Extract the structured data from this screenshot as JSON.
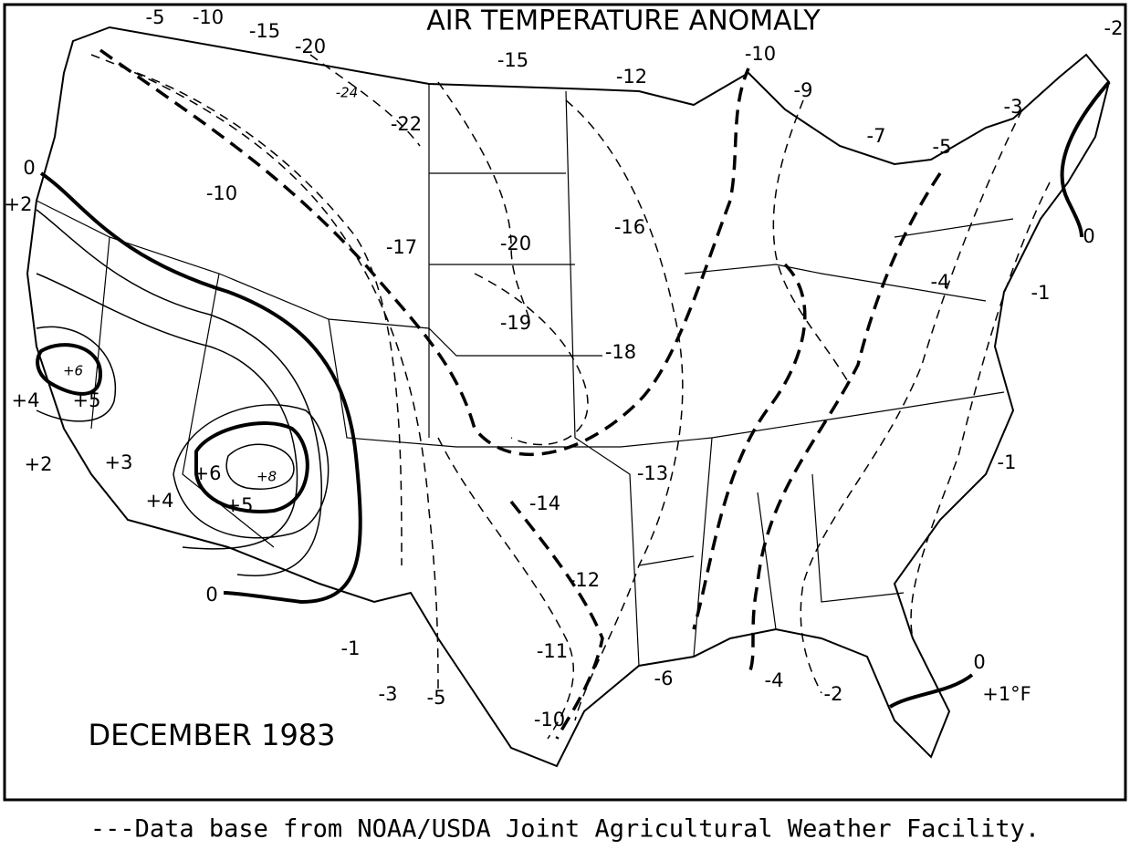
{
  "title": "AIR TEMPERATURE ANOMALY",
  "date_label": "DECEMBER 1983",
  "caption": "---Data base from NOAA/USDA Joint Agricultural Weather Facility.",
  "contour_labels": [
    "-5",
    "-10",
    "-15",
    "-20",
    "-24",
    "-22",
    "-15",
    "-12",
    "-10",
    "-9",
    "-7",
    "-3",
    "-2",
    "-5",
    "0",
    "-1",
    "-4",
    "-16",
    "-20",
    "-17",
    "-10",
    "0",
    "+2",
    "-19",
    "-18",
    "+6",
    "+4",
    "+5",
    "+2",
    "+3",
    "+6",
    "+8",
    "+5",
    "+4",
    "-13",
    "-14",
    "-1",
    "-12",
    "0",
    "-11",
    "-1",
    "-6",
    "-4",
    "-2",
    "0",
    "+1°F",
    "-3",
    "-5",
    "-10"
  ]
}
